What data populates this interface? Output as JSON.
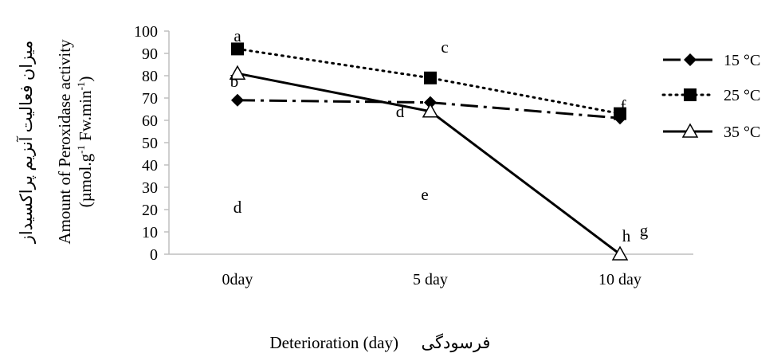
{
  "chart_data": {
    "type": "line",
    "categories": [
      "0day",
      "5 day",
      "10 day"
    ],
    "xlabel": "Deterioration (day)",
    "xlabel_fa": "فرسودگی",
    "ylabel_fa": "میزان فعالیت آنزیم پراکسیداز",
    "ylabel_en": "Amount of Peroxidase activity",
    "ylabel_unit_prefix": "(µmol.g",
    "ylabel_unit_sup1": "-1",
    "ylabel_unit_mid": " Fw.min",
    "ylabel_unit_sup2": "-1",
    "ylabel_unit_suffix": ")",
    "ylim": [
      0,
      100
    ],
    "yticks": [
      0,
      10,
      20,
      30,
      40,
      50,
      60,
      70,
      80,
      90,
      100
    ],
    "grid": false,
    "legend_position": "right",
    "series": [
      {
        "name": "15 °C",
        "values": [
          69,
          68,
          61
        ],
        "marker": "diamond",
        "line": "dash-dot",
        "color": "#000000",
        "letters": [
          "d",
          "d",
          "g"
        ]
      },
      {
        "name": "25 °C",
        "values": [
          92,
          79,
          63
        ],
        "marker": "square",
        "line": "dotted",
        "color": "#000000",
        "letters": [
          "a",
          "c",
          "f"
        ]
      },
      {
        "name": "35 °C",
        "values": [
          81,
          64,
          0
        ],
        "marker": "triangle-open",
        "line": "solid",
        "color": "#000000",
        "letters": [
          "b",
          "e",
          "h"
        ]
      }
    ]
  }
}
